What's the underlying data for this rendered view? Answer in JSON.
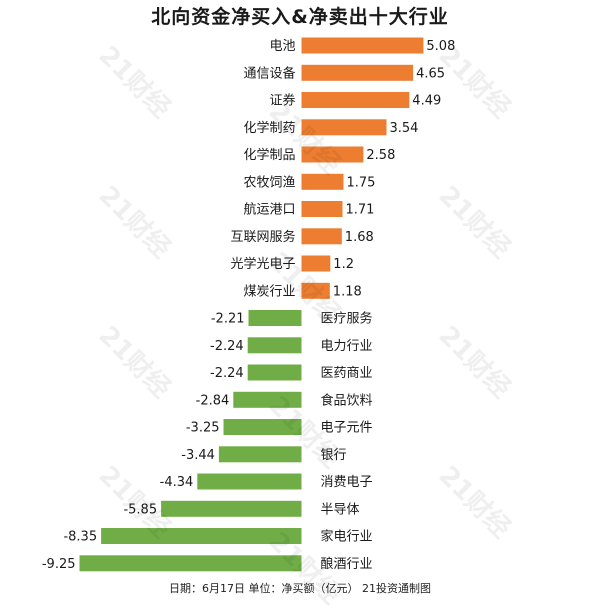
{
  "title": "北向资金净买入&净卖出十大行业",
  "footer": "日期：6月17日 单位：净买额（亿元） 21投资通制图",
  "watermark": "21财经",
  "colors": {
    "positive": "#ED7D31",
    "negative": "#70AD47",
    "text": "#1a1a1a"
  },
  "chart_data": {
    "type": "bar",
    "orientation": "horizontal",
    "title": "北向资金净买入&净卖出十大行业",
    "categories": [
      "电池",
      "通信设备",
      "证券",
      "化学制药",
      "化学制品",
      "农牧饲渔",
      "航运港口",
      "互联网服务",
      "光学光电子",
      "煤炭行业",
      "医疗服务",
      "电力行业",
      "医药商业",
      "食品饮料",
      "电子元件",
      "银行",
      "消费电子",
      "半导体",
      "家电行业",
      "酿酒行业"
    ],
    "values": [
      5.08,
      4.65,
      4.49,
      3.54,
      2.58,
      1.75,
      1.71,
      1.68,
      1.2,
      1.18,
      -2.21,
      -2.24,
      -2.24,
      -2.84,
      -3.25,
      -3.44,
      -4.34,
      -5.85,
      -8.35,
      -9.25
    ],
    "value_labels": [
      "5.08",
      "4.65",
      "4.49",
      "3.54",
      "2.58",
      "1.75",
      "1.71",
      "1.68",
      "1.2",
      "1.18",
      "-2.21",
      "-2.24",
      "-2.24",
      "-2.84",
      "-3.25",
      "-3.44",
      "-4.34",
      "-5.85",
      "-8.35",
      "-9.25"
    ],
    "xlim": [
      -9.25,
      5.08
    ],
    "grid": false,
    "legend": "none",
    "unit": "净买额（亿元）"
  }
}
